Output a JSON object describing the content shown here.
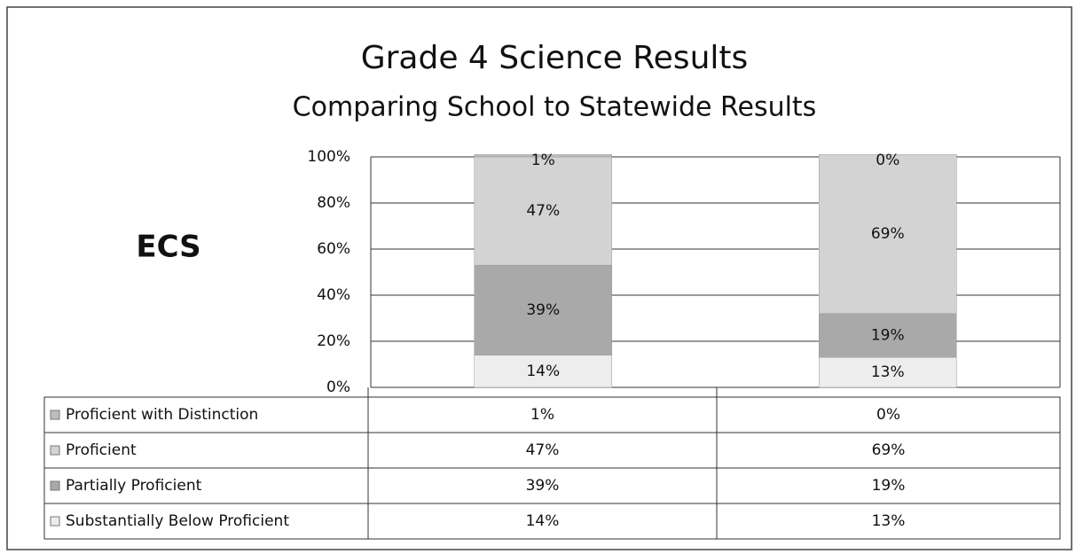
{
  "chart_data": {
    "type": "stacked_bar",
    "title": "Grade 4 Science Results",
    "subtitle": "Comparing School to Statewide Results",
    "annotation": "ECS",
    "categories": [
      null,
      null
    ],
    "series": [
      {
        "name": "Substantially Below Proficient",
        "color": "#ededed",
        "values": [
          14,
          13
        ],
        "value_labels": [
          "14%",
          "13%"
        ]
      },
      {
        "name": "Partially Proficient",
        "color": "#a9a9a9",
        "values": [
          39,
          19
        ],
        "value_labels": [
          "39%",
          "19%"
        ]
      },
      {
        "name": "Proficient",
        "color": "#d3d3d3",
        "values": [
          47,
          69
        ],
        "value_labels": [
          "47%",
          "69%"
        ]
      },
      {
        "name": "Proficient with Distinction",
        "color": "#bdbdbd",
        "values": [
          1,
          0
        ],
        "value_labels": [
          "1%",
          "0%"
        ]
      }
    ],
    "ylim": [
      0,
      100
    ],
    "yticks": [
      {
        "value": 0,
        "label": "0%"
      },
      {
        "value": 20,
        "label": "20%"
      },
      {
        "value": 40,
        "label": "40%"
      },
      {
        "value": 60,
        "label": "60%"
      },
      {
        "value": 80,
        "label": "80%"
      },
      {
        "value": 100,
        "label": "100%"
      }
    ],
    "grid": true,
    "legend": "table"
  }
}
